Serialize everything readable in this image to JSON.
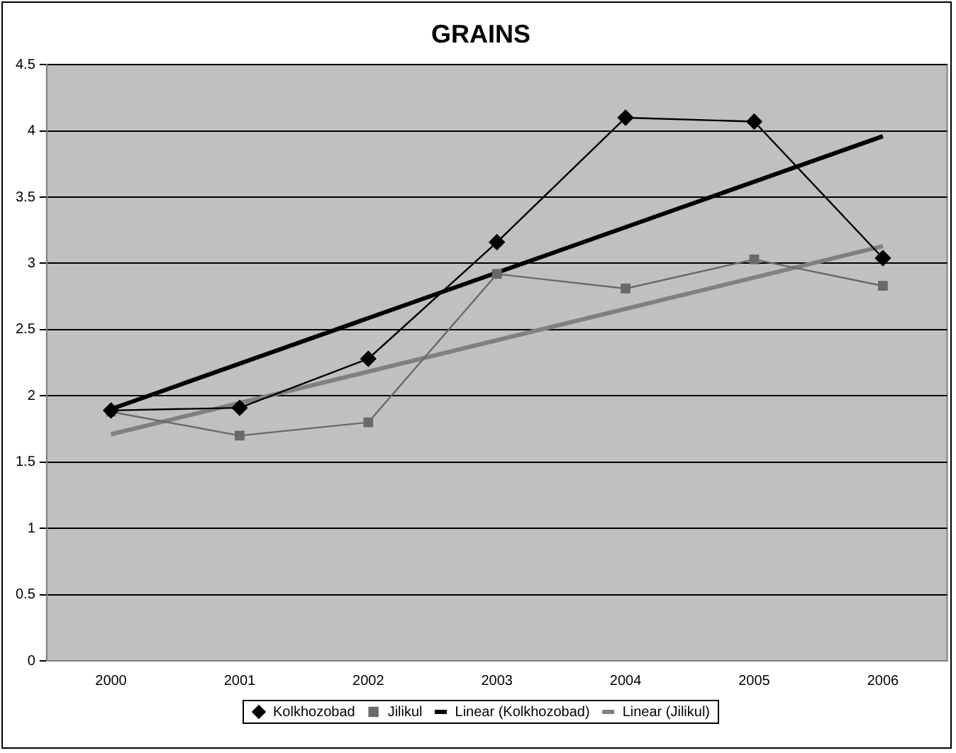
{
  "chart_data": {
    "type": "line",
    "title": "GRAINS",
    "categories": [
      "2000",
      "2001",
      "2002",
      "2003",
      "2004",
      "2005",
      "2006"
    ],
    "series": [
      {
        "name": "Kolkhozobad",
        "color": "#000000",
        "marker": "diamond",
        "values": [
          1.89,
          1.91,
          2.28,
          3.16,
          4.1,
          4.07,
          3.04
        ]
      },
      {
        "name": "Jilikul",
        "color": "#696969",
        "marker": "square",
        "values": [
          1.88,
          1.7,
          1.8,
          2.92,
          2.81,
          3.03,
          2.83
        ]
      },
      {
        "name": "Linear (Kolkhozobad)",
        "color": "#000000",
        "marker": "none",
        "values": [
          1.9,
          null,
          null,
          null,
          null,
          null,
          3.96
        ]
      },
      {
        "name": "Linear (Jilikul)",
        "color": "#808080",
        "marker": "none",
        "values": [
          1.71,
          null,
          null,
          null,
          null,
          null,
          3.13
        ]
      }
    ],
    "ylim": [
      0,
      4.5
    ],
    "yticks": [
      0,
      0.5,
      1,
      1.5,
      2,
      2.5,
      3,
      3.5,
      4,
      4.5
    ],
    "grid": "y",
    "legend": "bottom"
  }
}
